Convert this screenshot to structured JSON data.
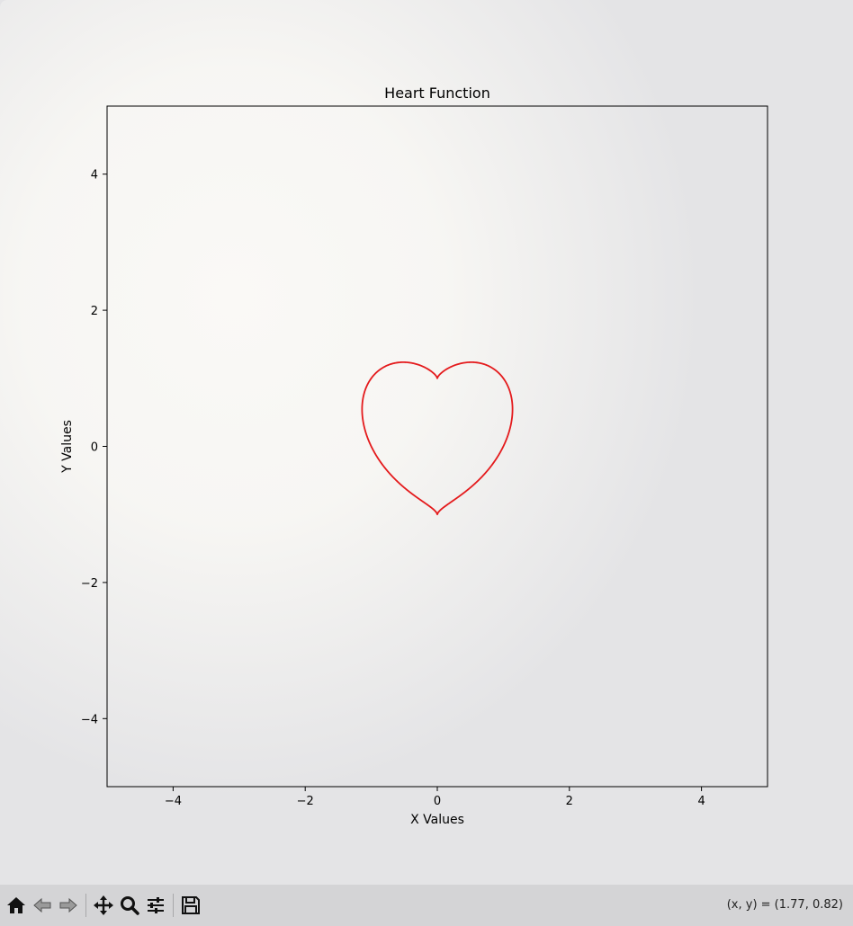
{
  "window": {
    "title": ""
  },
  "chart_data": {
    "type": "line",
    "title": "Heart Function",
    "xlabel": "X Values",
    "ylabel": "Y Values",
    "xlim": [
      -5,
      5
    ],
    "ylim": [
      -5,
      5
    ],
    "xticks": [
      -4,
      -2,
      0,
      2,
      4
    ],
    "yticks": [
      -4,
      -2,
      0,
      2,
      4
    ],
    "xtick_labels": [
      "−4",
      "−2",
      "0",
      "2",
      "4"
    ],
    "ytick_labels": [
      "−4",
      "−2",
      "0",
      "2",
      "4"
    ],
    "grid": false,
    "series": [
      {
        "color": "#e41a1c",
        "equation": "(x^2 + y^2 - 1)^3 - x^2 * y^3 = 0",
        "x": [
          0,
          0.1,
          0.25,
          0.4,
          0.5,
          0.6,
          0.75,
          0.9,
          1.0,
          1.08,
          1.13,
          1.14,
          1.12,
          1.07,
          0.98,
          0.85,
          0.7,
          0.55,
          0.4,
          0.25,
          0.1,
          0,
          -0.1,
          -0.25,
          -0.4,
          -0.55,
          -0.7,
          -0.85,
          -0.98,
          -1.07,
          -1.12,
          -1.14,
          -1.13,
          -1.08,
          -1.0,
          -0.9,
          -0.75,
          -0.6,
          -0.5,
          -0.4,
          -0.25,
          -0.1,
          0
        ],
        "y": [
          1.0,
          1.09,
          1.19,
          1.24,
          1.25,
          1.24,
          1.19,
          1.08,
          0.95,
          0.8,
          0.62,
          0.45,
          0.25,
          0.05,
          -0.12,
          -0.3,
          -0.47,
          -0.62,
          -0.75,
          -0.85,
          -0.93,
          -0.97,
          -0.93,
          -0.85,
          -0.75,
          -0.62,
          -0.47,
          -0.3,
          -0.12,
          0.05,
          0.25,
          0.45,
          0.62,
          0.8,
          0.95,
          1.08,
          1.19,
          1.24,
          1.25,
          1.24,
          1.19,
          1.09,
          1.0
        ]
      }
    ]
  },
  "toolbar": {
    "tools": [
      {
        "name": "home-icon",
        "tooltip": "Reset original view"
      },
      {
        "name": "back-icon",
        "tooltip": "Back to previous view"
      },
      {
        "name": "forward-icon",
        "tooltip": "Forward to next view"
      },
      {
        "name": "pan-icon",
        "tooltip": "Pan axes"
      },
      {
        "name": "zoom-icon",
        "tooltip": "Zoom to rectangle"
      },
      {
        "name": "configure-icon",
        "tooltip": "Configure subplots"
      },
      {
        "name": "save-icon",
        "tooltip": "Save the figure"
      }
    ],
    "coords_text": "(x, y) = (1.77, 0.82)"
  }
}
